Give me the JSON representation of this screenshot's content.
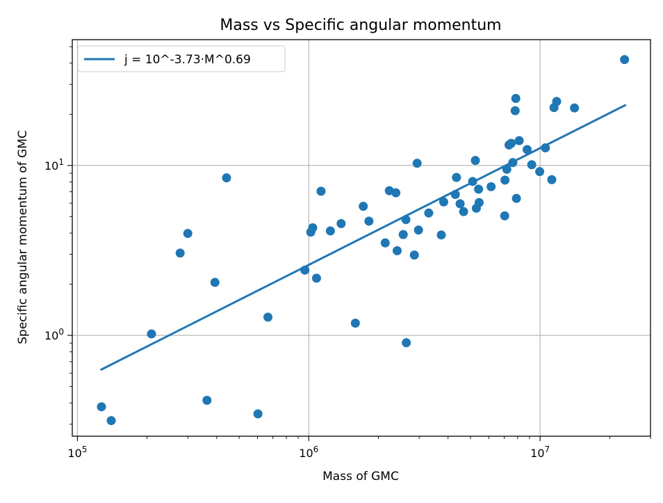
{
  "chart_data": {
    "type": "scatter",
    "title": "Mass vs Specific angular momentum",
    "xlabel": "Mass of GMC",
    "ylabel": "Specific angular momentum of GMC",
    "xscale": "log",
    "yscale": "log",
    "xlim": [
      95000,
      30000000
    ],
    "ylim": [
      0.255,
      55
    ],
    "grid": true,
    "legend_position": "top-left",
    "x_ticks": [
      {
        "base": "10",
        "exp": "5",
        "value": 100000
      },
      {
        "base": "10",
        "exp": "6",
        "value": 1000000
      },
      {
        "base": "10",
        "exp": "7",
        "value": 10000000
      }
    ],
    "y_ticks": [
      {
        "base": "10",
        "exp": "0",
        "value": 1
      },
      {
        "base": "10",
        "exp": "1",
        "value": 10
      }
    ],
    "series": [
      {
        "name": "",
        "type": "scatter",
        "color": "#1f77b4",
        "points": [
          [
            127000,
            0.38
          ],
          [
            140000,
            0.315
          ],
          [
            209000,
            1.02
          ],
          [
            278000,
            3.05
          ],
          [
            300000,
            3.98
          ],
          [
            363000,
            0.415
          ],
          [
            393000,
            2.05
          ],
          [
            441000,
            8.45
          ],
          [
            603000,
            0.345
          ],
          [
            666000,
            1.28
          ],
          [
            962000,
            2.42
          ],
          [
            1020000,
            4.05
          ],
          [
            1040000,
            4.3
          ],
          [
            1080000,
            2.17
          ],
          [
            1130000,
            7.05
          ],
          [
            1240000,
            4.12
          ],
          [
            1380000,
            4.55
          ],
          [
            1590000,
            1.18
          ],
          [
            1720000,
            5.75
          ],
          [
            1820000,
            4.7
          ],
          [
            2140000,
            3.5
          ],
          [
            2230000,
            7.1
          ],
          [
            2380000,
            6.9
          ],
          [
            2410000,
            3.15
          ],
          [
            2560000,
            3.92
          ],
          [
            2630000,
            4.8
          ],
          [
            2640000,
            0.905
          ],
          [
            2860000,
            2.97
          ],
          [
            2940000,
            10.3
          ],
          [
            2980000,
            4.17
          ],
          [
            3300000,
            5.25
          ],
          [
            3740000,
            3.9
          ],
          [
            3830000,
            6.1
          ],
          [
            4300000,
            6.75
          ],
          [
            4350000,
            8.5
          ],
          [
            4510000,
            5.95
          ],
          [
            4670000,
            5.35
          ],
          [
            5110000,
            8.05
          ],
          [
            5250000,
            10.7
          ],
          [
            5300000,
            5.6
          ],
          [
            5420000,
            7.25
          ],
          [
            5450000,
            6.05
          ],
          [
            6140000,
            7.5
          ],
          [
            7030000,
            5.05
          ],
          [
            7050000,
            8.2
          ],
          [
            7180000,
            9.5
          ],
          [
            7340000,
            13.2
          ],
          [
            7500000,
            13.5
          ],
          [
            7620000,
            10.4
          ],
          [
            7800000,
            21.0
          ],
          [
            7850000,
            24.8
          ],
          [
            7900000,
            6.4
          ],
          [
            8120000,
            14.0
          ],
          [
            8790000,
            12.4
          ],
          [
            9200000,
            10.1
          ],
          [
            9960000,
            9.2
          ],
          [
            10540000,
            12.7
          ],
          [
            11230000,
            8.25
          ],
          [
            11480000,
            21.9
          ],
          [
            11790000,
            23.8
          ],
          [
            14080000,
            21.8
          ],
          [
            23170000,
            42.0
          ]
        ]
      },
      {
        "name": "j = 10^-3.73·M^0.69",
        "type": "line",
        "color": "#1f77b4",
        "points": [
          [
            127000,
            0.63
          ],
          [
            23300000,
            22.6
          ]
        ]
      }
    ]
  }
}
